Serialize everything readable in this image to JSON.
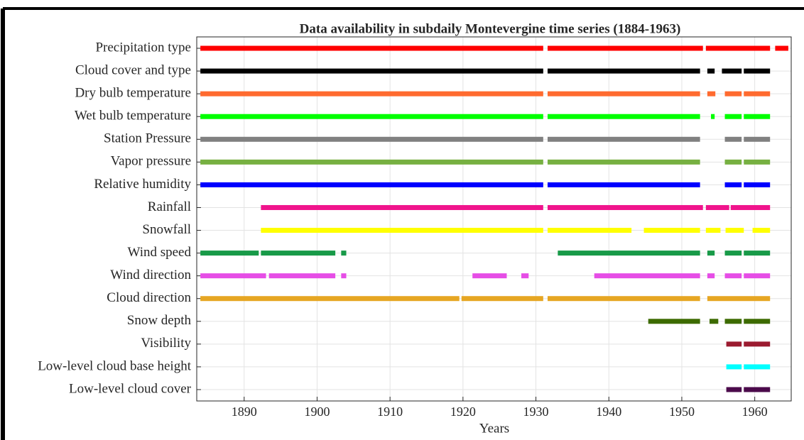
{
  "chart_data": {
    "type": "availability",
    "title": "Data availability in subdaily Montevergine time series (1884-1963)",
    "xlabel": "Years",
    "xlim": [
      1883.5,
      1965
    ],
    "xticks": [
      1890,
      1900,
      1910,
      1920,
      1930,
      1940,
      1950,
      1960
    ],
    "grid": true,
    "series": [
      {
        "name": "Precipitation type",
        "color": "#ff0000",
        "segments": [
          [
            1884,
            1931
          ],
          [
            1931.6,
            1952.9
          ],
          [
            1953.3,
            1962.1
          ],
          [
            1962.8,
            1964.6
          ]
        ]
      },
      {
        "name": "Cloud cover and type",
        "color": "#000000",
        "segments": [
          [
            1884,
            1931
          ],
          [
            1931.6,
            1952.5
          ],
          [
            1953.5,
            1954.5
          ],
          [
            1955.5,
            1958.2
          ],
          [
            1958.5,
            1962.1
          ]
        ]
      },
      {
        "name": "Dry bulb temperature",
        "color": "#ff6a2f",
        "segments": [
          [
            1884,
            1931
          ],
          [
            1931.6,
            1952.5
          ],
          [
            1953.5,
            1954.6
          ],
          [
            1955.9,
            1958.2
          ],
          [
            1958.5,
            1962.1
          ]
        ]
      },
      {
        "name": "Wet bulb temperature",
        "color": "#00ff00",
        "segments": [
          [
            1884,
            1931
          ],
          [
            1931.6,
            1952.5
          ],
          [
            1954,
            1954.5
          ],
          [
            1955.9,
            1958.2
          ],
          [
            1958.5,
            1962.1
          ]
        ]
      },
      {
        "name": "Station Pressure",
        "color": "#808080",
        "segments": [
          [
            1884,
            1931
          ],
          [
            1931.6,
            1952.5
          ],
          [
            1955.9,
            1958.2
          ],
          [
            1958.5,
            1962.1
          ]
        ]
      },
      {
        "name": "Vapor pressure",
        "color": "#76b041",
        "segments": [
          [
            1884,
            1931
          ],
          [
            1931.6,
            1952.5
          ],
          [
            1955.9,
            1958.2
          ],
          [
            1958.5,
            1962.1
          ]
        ]
      },
      {
        "name": "Relative humidity",
        "color": "#0000ff",
        "segments": [
          [
            1884,
            1931
          ],
          [
            1931.6,
            1952.5
          ],
          [
            1955.9,
            1958.2
          ],
          [
            1958.5,
            1962.1
          ]
        ]
      },
      {
        "name": "Rainfall",
        "color": "#f0148c",
        "segments": [
          [
            1892.3,
            1931
          ],
          [
            1931.6,
            1952.9
          ],
          [
            1953.3,
            1956.5
          ],
          [
            1956.7,
            1962.1
          ]
        ]
      },
      {
        "name": "Snowfall",
        "color": "#ffff00",
        "segments": [
          [
            1892.3,
            1931
          ],
          [
            1931.6,
            1943.1
          ],
          [
            1944.8,
            1952.5
          ],
          [
            1953.3,
            1955.3
          ],
          [
            1956,
            1958.5
          ],
          [
            1959.7,
            1962.1
          ]
        ]
      },
      {
        "name": "Wind speed",
        "color": "#189a48",
        "segments": [
          [
            1884,
            1892
          ],
          [
            1892.3,
            1902.5
          ],
          [
            1903.3,
            1904
          ],
          [
            1933,
            1952.5
          ],
          [
            1953.5,
            1954.5
          ],
          [
            1955.9,
            1958.2
          ],
          [
            1958.5,
            1962.1
          ]
        ]
      },
      {
        "name": "Wind direction",
        "color": "#e64de6",
        "segments": [
          [
            1884,
            1893
          ],
          [
            1893.4,
            1902.5
          ],
          [
            1903.3,
            1904
          ],
          [
            1921.3,
            1926
          ],
          [
            1928,
            1929
          ],
          [
            1938,
            1952.5
          ],
          [
            1953.5,
            1954.5
          ],
          [
            1955.9,
            1958.2
          ],
          [
            1958.5,
            1962.1
          ]
        ]
      },
      {
        "name": "Cloud direction",
        "color": "#e6a623",
        "segments": [
          [
            1884,
            1919.5
          ],
          [
            1919.8,
            1931
          ],
          [
            1931.6,
            1952.5
          ],
          [
            1953.5,
            1962.1
          ]
        ]
      },
      {
        "name": "Snow depth",
        "color": "#3d6b00",
        "segments": [
          [
            1945.4,
            1952.5
          ],
          [
            1953.8,
            1955
          ],
          [
            1955.9,
            1958.2
          ],
          [
            1958.5,
            1962.1
          ]
        ]
      },
      {
        "name": "Visibility",
        "color": "#9b1b30",
        "segments": [
          [
            1956.1,
            1958.2
          ],
          [
            1958.5,
            1962.1
          ]
        ]
      },
      {
        "name": "Low-level cloud base height",
        "color": "#00ffff",
        "segments": [
          [
            1956.1,
            1958.2
          ],
          [
            1958.5,
            1962.1
          ]
        ]
      },
      {
        "name": "Low-level cloud cover",
        "color": "#4b0a4b",
        "segments": [
          [
            1956.1,
            1958.2
          ],
          [
            1958.5,
            1962.1
          ]
        ]
      }
    ]
  }
}
